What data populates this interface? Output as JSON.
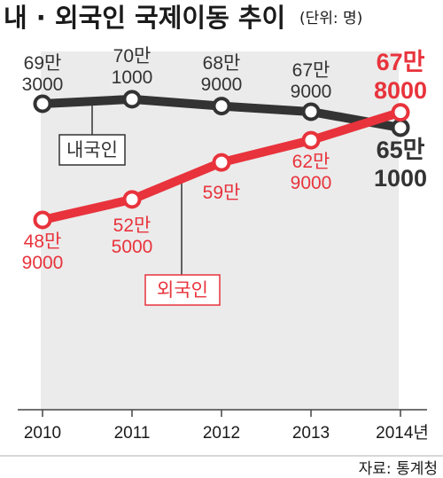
{
  "title": "내 · 외국인 국제이동 추이",
  "unit": "(단위: 명)",
  "source": "자료: 통계청",
  "chart_data": {
    "type": "line",
    "x": [
      "2010",
      "2011",
      "2012",
      "2013",
      "2014년"
    ],
    "ylim": [
      0,
      750000
    ],
    "grid": false,
    "series": [
      {
        "name": "내국인",
        "values": [
          693000,
          701000,
          689000,
          679000,
          651000
        ],
        "labels": [
          [
            "69만",
            "3000"
          ],
          [
            "70만",
            "1000"
          ],
          [
            "68만",
            "9000"
          ],
          [
            "67만",
            "9000"
          ],
          [
            "65만",
            "1000"
          ]
        ],
        "color": "#333333"
      },
      {
        "name": "외국인",
        "values": [
          489000,
          525000,
          590000,
          629000,
          678000
        ],
        "labels": [
          [
            "48만",
            "9000"
          ],
          [
            "52만",
            "5000"
          ],
          [
            "59만",
            ""
          ],
          [
            "62만",
            "9000"
          ],
          [
            "67만",
            "8000"
          ]
        ],
        "color": "#e8333c"
      }
    ]
  }
}
